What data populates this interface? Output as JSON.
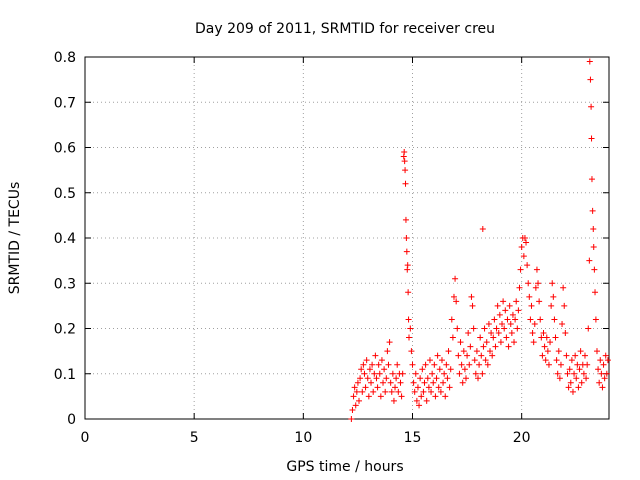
{
  "chart_data": {
    "type": "scatter",
    "title": "Day 209 of 2011, SRMTID for receiver creu",
    "xlabel": "GPS time / hours",
    "ylabel": "SRMTID / TECUs",
    "xlim": [
      0,
      24
    ],
    "ylim": [
      0,
      0.8
    ],
    "xticks": [
      "0",
      "5",
      "10",
      "15",
      "20"
    ],
    "yticks": [
      "0",
      "0.1",
      "0.2",
      "0.3",
      "0.4",
      "0.5",
      "0.6",
      "0.7",
      "0.8"
    ],
    "grid": true,
    "marker": "+",
    "marker_color": "#ff0000",
    "series": [
      {
        "name": "SRMTID",
        "points": [
          [
            12.2,
            0.0
          ],
          [
            12.25,
            0.02
          ],
          [
            12.3,
            0.05
          ],
          [
            12.35,
            0.07
          ],
          [
            12.4,
            0.03
          ],
          [
            12.45,
            0.06
          ],
          [
            12.5,
            0.08
          ],
          [
            12.55,
            0.04
          ],
          [
            12.6,
            0.09
          ],
          [
            12.65,
            0.11
          ],
          [
            12.7,
            0.06
          ],
          [
            12.75,
            0.12
          ],
          [
            12.8,
            0.1
          ],
          [
            12.85,
            0.07
          ],
          [
            12.9,
            0.13
          ],
          [
            12.95,
            0.09
          ],
          [
            13.0,
            0.05
          ],
          [
            13.05,
            0.11
          ],
          [
            13.1,
            0.08
          ],
          [
            13.15,
            0.12
          ],
          [
            13.2,
            0.06
          ],
          [
            13.25,
            0.1
          ],
          [
            13.3,
            0.14
          ],
          [
            13.35,
            0.09
          ],
          [
            13.4,
            0.07
          ],
          [
            13.45,
            0.12
          ],
          [
            13.5,
            0.1
          ],
          [
            13.55,
            0.05
          ],
          [
            13.6,
            0.13
          ],
          [
            13.65,
            0.08
          ],
          [
            13.7,
            0.11
          ],
          [
            13.75,
            0.06
          ],
          [
            13.8,
            0.09
          ],
          [
            13.85,
            0.15
          ],
          [
            13.9,
            0.12
          ],
          [
            13.95,
            0.17
          ],
          [
            14.0,
            0.08
          ],
          [
            14.05,
            0.06
          ],
          [
            14.1,
            0.1
          ],
          [
            14.15,
            0.04
          ],
          [
            14.2,
            0.07
          ],
          [
            14.25,
            0.09
          ],
          [
            14.3,
            0.12
          ],
          [
            14.35,
            0.06
          ],
          [
            14.4,
            0.1
          ],
          [
            14.45,
            0.08
          ],
          [
            14.5,
            0.05
          ],
          [
            14.55,
            0.1
          ],
          [
            14.6,
            0.58
          ],
          [
            14.62,
            0.59
          ],
          [
            14.64,
            0.57
          ],
          [
            14.66,
            0.55
          ],
          [
            14.68,
            0.52
          ],
          [
            14.7,
            0.44
          ],
          [
            14.72,
            0.4
          ],
          [
            14.74,
            0.37
          ],
          [
            14.76,
            0.33
          ],
          [
            14.78,
            0.34
          ],
          [
            14.8,
            0.28
          ],
          [
            14.82,
            0.22
          ],
          [
            14.84,
            0.18
          ],
          [
            14.9,
            0.2
          ],
          [
            14.95,
            0.15
          ],
          [
            15.0,
            0.12
          ],
          [
            15.05,
            0.08
          ],
          [
            15.1,
            0.06
          ],
          [
            15.15,
            0.1
          ],
          [
            15.2,
            0.04
          ],
          [
            15.25,
            0.07
          ],
          [
            15.3,
            0.03
          ],
          [
            15.35,
            0.09
          ],
          [
            15.4,
            0.05
          ],
          [
            15.45,
            0.11
          ],
          [
            15.5,
            0.06
          ],
          [
            15.55,
            0.08
          ],
          [
            15.6,
            0.12
          ],
          [
            15.65,
            0.04
          ],
          [
            15.7,
            0.09
          ],
          [
            15.75,
            0.07
          ],
          [
            15.8,
            0.13
          ],
          [
            15.85,
            0.06
          ],
          [
            15.9,
            0.1
          ],
          [
            15.95,
            0.08
          ],
          [
            16.0,
            0.12
          ],
          [
            16.05,
            0.05
          ],
          [
            16.1,
            0.09
          ],
          [
            16.15,
            0.14
          ],
          [
            16.2,
            0.07
          ],
          [
            16.25,
            0.11
          ],
          [
            16.3,
            0.06
          ],
          [
            16.35,
            0.13
          ],
          [
            16.4,
            0.08
          ],
          [
            16.45,
            0.1
          ],
          [
            16.5,
            0.05
          ],
          [
            16.55,
            0.12
          ],
          [
            16.6,
            0.09
          ],
          [
            16.65,
            0.15
          ],
          [
            16.7,
            0.07
          ],
          [
            16.75,
            0.11
          ],
          [
            16.8,
            0.22
          ],
          [
            16.85,
            0.18
          ],
          [
            16.9,
            0.27
          ],
          [
            16.95,
            0.31
          ],
          [
            17.0,
            0.26
          ],
          [
            17.05,
            0.2
          ],
          [
            17.1,
            0.14
          ],
          [
            17.15,
            0.1
          ],
          [
            17.2,
            0.17
          ],
          [
            17.25,
            0.12
          ],
          [
            17.3,
            0.08
          ],
          [
            17.35,
            0.15
          ],
          [
            17.4,
            0.11
          ],
          [
            17.45,
            0.09
          ],
          [
            17.5,
            0.14
          ],
          [
            17.55,
            0.19
          ],
          [
            17.6,
            0.12
          ],
          [
            17.65,
            0.16
          ],
          [
            17.7,
            0.27
          ],
          [
            17.75,
            0.25
          ],
          [
            17.8,
            0.2
          ],
          [
            17.85,
            0.13
          ],
          [
            17.9,
            0.1
          ],
          [
            17.95,
            0.15
          ],
          [
            18.0,
            0.09
          ],
          [
            18.05,
            0.12
          ],
          [
            18.1,
            0.18
          ],
          [
            18.15,
            0.14
          ],
          [
            18.2,
            0.1
          ],
          [
            18.22,
            0.42
          ],
          [
            18.25,
            0.16
          ],
          [
            18.3,
            0.2
          ],
          [
            18.35,
            0.13
          ],
          [
            18.4,
            0.17
          ],
          [
            18.45,
            0.12
          ],
          [
            18.5,
            0.21
          ],
          [
            18.55,
            0.15
          ],
          [
            18.6,
            0.19
          ],
          [
            18.65,
            0.14
          ],
          [
            18.7,
            0.18
          ],
          [
            18.75,
            0.22
          ],
          [
            18.8,
            0.16
          ],
          [
            18.85,
            0.2
          ],
          [
            18.9,
            0.25
          ],
          [
            18.95,
            0.19
          ],
          [
            19.0,
            0.23
          ],
          [
            19.05,
            0.17
          ],
          [
            19.1,
            0.21
          ],
          [
            19.15,
            0.26
          ],
          [
            19.2,
            0.2
          ],
          [
            19.25,
            0.24
          ],
          [
            19.3,
            0.18
          ],
          [
            19.35,
            0.22
          ],
          [
            19.4,
            0.16
          ],
          [
            19.45,
            0.25
          ],
          [
            19.5,
            0.21
          ],
          [
            19.55,
            0.19
          ],
          [
            19.6,
            0.23
          ],
          [
            19.65,
            0.17
          ],
          [
            19.7,
            0.22
          ],
          [
            19.75,
            0.26
          ],
          [
            19.8,
            0.2
          ],
          [
            19.85,
            0.24
          ],
          [
            19.9,
            0.29
          ],
          [
            19.95,
            0.33
          ],
          [
            20.0,
            0.38
          ],
          [
            20.05,
            0.4
          ],
          [
            20.1,
            0.36
          ],
          [
            20.15,
            0.4
          ],
          [
            20.2,
            0.39
          ],
          [
            20.25,
            0.34
          ],
          [
            20.3,
            0.3
          ],
          [
            20.35,
            0.27
          ],
          [
            20.4,
            0.22
          ],
          [
            20.45,
            0.25
          ],
          [
            20.5,
            0.19
          ],
          [
            20.55,
            0.17
          ],
          [
            20.6,
            0.21
          ],
          [
            20.65,
            0.29
          ],
          [
            20.7,
            0.33
          ],
          [
            20.75,
            0.3
          ],
          [
            20.8,
            0.26
          ],
          [
            20.85,
            0.22
          ],
          [
            20.9,
            0.18
          ],
          [
            20.95,
            0.14
          ],
          [
            21.0,
            0.19
          ],
          [
            21.05,
            0.16
          ],
          [
            21.1,
            0.13
          ],
          [
            21.15,
            0.18
          ],
          [
            21.2,
            0.15
          ],
          [
            21.25,
            0.12
          ],
          [
            21.3,
            0.17
          ],
          [
            21.35,
            0.25
          ],
          [
            21.4,
            0.3
          ],
          [
            21.45,
            0.27
          ],
          [
            21.5,
            0.22
          ],
          [
            21.55,
            0.18
          ],
          [
            21.6,
            0.13
          ],
          [
            21.65,
            0.1
          ],
          [
            21.7,
            0.15
          ],
          [
            21.75,
            0.09
          ],
          [
            21.8,
            0.12
          ],
          [
            21.85,
            0.21
          ],
          [
            21.9,
            0.29
          ],
          [
            21.95,
            0.25
          ],
          [
            22.0,
            0.19
          ],
          [
            22.05,
            0.14
          ],
          [
            22.1,
            0.1
          ],
          [
            22.15,
            0.07
          ],
          [
            22.2,
            0.11
          ],
          [
            22.25,
            0.08
          ],
          [
            22.3,
            0.13
          ],
          [
            22.35,
            0.06
          ],
          [
            22.4,
            0.1
          ],
          [
            22.45,
            0.14
          ],
          [
            22.5,
            0.09
          ],
          [
            22.55,
            0.12
          ],
          [
            22.6,
            0.07
          ],
          [
            22.65,
            0.11
          ],
          [
            22.7,
            0.15
          ],
          [
            22.75,
            0.08
          ],
          [
            22.8,
            0.12
          ],
          [
            22.85,
            0.1
          ],
          [
            22.9,
            0.14
          ],
          [
            22.95,
            0.09
          ],
          [
            23.0,
            0.12
          ],
          [
            23.05,
            0.2
          ],
          [
            23.1,
            0.35
          ],
          [
            23.12,
            0.79
          ],
          [
            23.15,
            0.75
          ],
          [
            23.18,
            0.69
          ],
          [
            23.2,
            0.62
          ],
          [
            23.22,
            0.53
          ],
          [
            23.25,
            0.46
          ],
          [
            23.28,
            0.42
          ],
          [
            23.3,
            0.38
          ],
          [
            23.33,
            0.33
          ],
          [
            23.36,
            0.28
          ],
          [
            23.4,
            0.22
          ],
          [
            23.45,
            0.15
          ],
          [
            23.5,
            0.11
          ],
          [
            23.55,
            0.08
          ],
          [
            23.6,
            0.13
          ],
          [
            23.65,
            0.1
          ],
          [
            23.7,
            0.07
          ],
          [
            23.75,
            0.12
          ],
          [
            23.8,
            0.09
          ],
          [
            23.85,
            0.14
          ],
          [
            23.9,
            0.1
          ],
          [
            23.95,
            0.13
          ]
        ]
      }
    ]
  }
}
